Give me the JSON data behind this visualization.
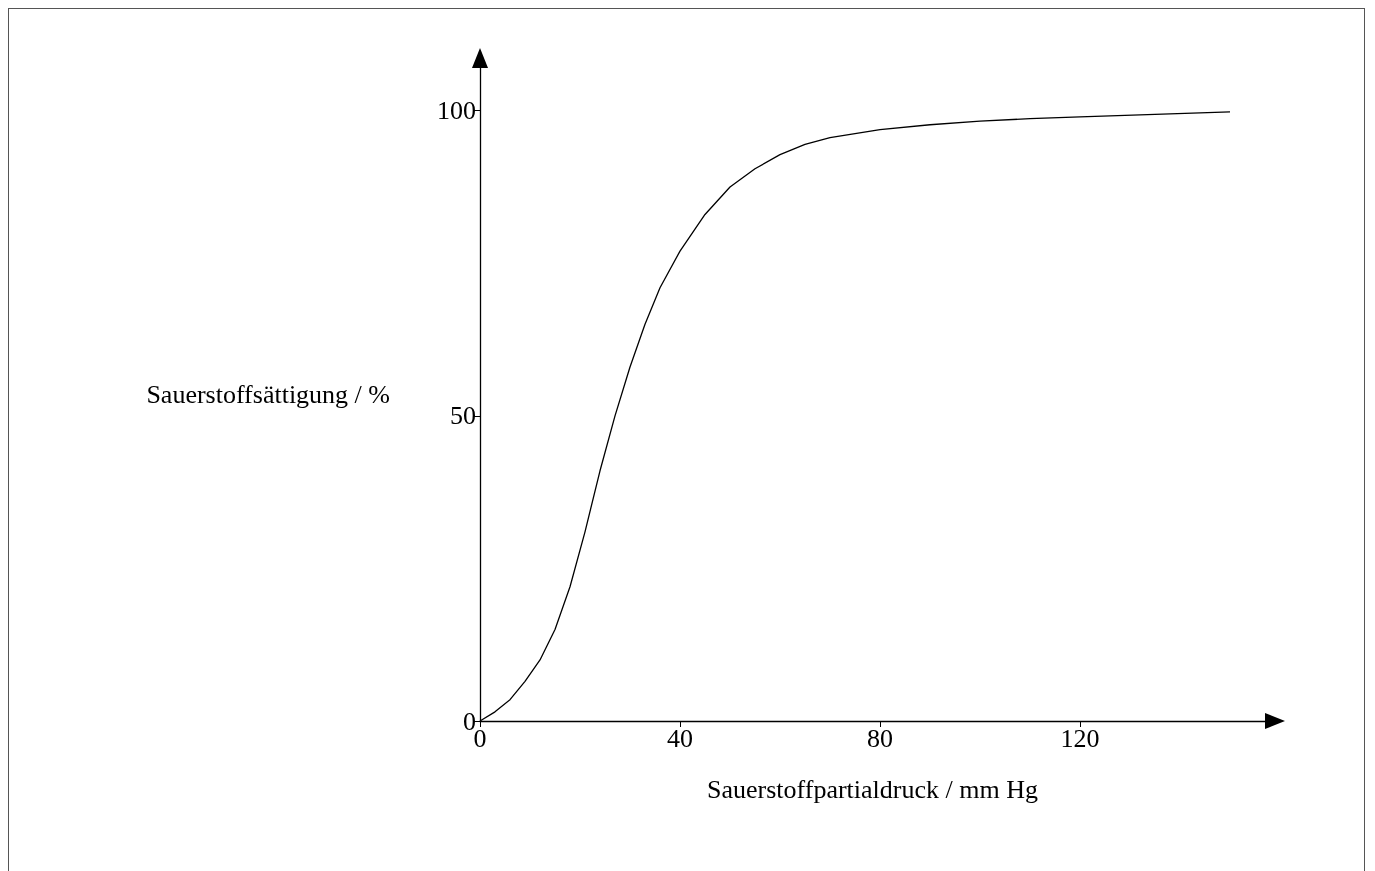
{
  "chart_data": {
    "type": "line",
    "xlabel": "Sauerstoffpartialdruck / mm Hg",
    "ylabel": "Sauerstoffsättigung / %",
    "series": [
      {
        "color": "#000000",
        "x": [
          0,
          3,
          6,
          9,
          12,
          15,
          18,
          21,
          24,
          27,
          30,
          33,
          36,
          40,
          45,
          50,
          55,
          60,
          65,
          70,
          80,
          90,
          100,
          110,
          120,
          135,
          150
        ],
        "values": [
          0,
          1.5,
          3.5,
          6.5,
          10,
          15,
          22,
          31,
          41,
          50,
          58,
          65,
          71,
          77,
          83,
          87.5,
          90.5,
          92.8,
          94.5,
          95.6,
          96.9,
          97.7,
          98.3,
          98.7,
          99,
          99.4,
          99.8
        ]
      }
    ],
    "xlim": [
      0,
      157
    ],
    "ylim": [
      0,
      107
    ],
    "xticks": [
      0,
      40,
      80,
      120
    ],
    "yticks": [
      0,
      50,
      100
    ],
    "grid": false,
    "marker": "none",
    "line_style": "solid"
  }
}
